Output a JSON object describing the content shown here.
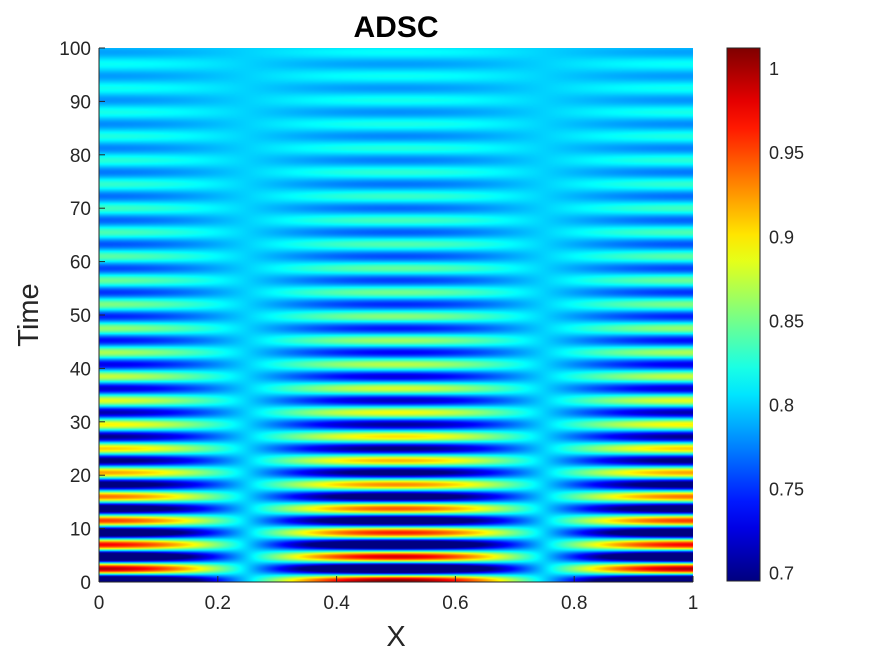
{
  "chart_data": {
    "type": "heatmap",
    "title": "ADSC",
    "xlabel": "X",
    "ylabel": "Time",
    "xlim": [
      0,
      1
    ],
    "ylim": [
      0,
      100
    ],
    "xticks": [
      "0",
      "0.2",
      "0.4",
      "0.6",
      "0.8",
      "1"
    ],
    "yticks": [
      "0",
      "10",
      "20",
      "30",
      "40",
      "50",
      "60",
      "70",
      "80",
      "90",
      "100"
    ],
    "colormap": "jet",
    "clim": [
      0.695,
      1.012
    ],
    "colorbar_ticks": [
      "0.7",
      "0.75",
      "0.8",
      "0.85",
      "0.9",
      "0.95",
      "1"
    ],
    "baseline_value": 0.8,
    "field": {
      "x_nodal_positions": [
        0,
        0.5,
        1
      ],
      "x_nodal_position_with_zero_amplitude": [
        0.25,
        0.75
      ],
      "time_of_first_peak": 2.5,
      "oscillation_period_time": 4.5,
      "amplitude_at_time_0": 0.21,
      "amplitude_at_time_100": 0.015
    },
    "bands": [
      {
        "time": 2.5,
        "edge_value": 1.01,
        "center_value": 0.7
      },
      {
        "time": 7,
        "edge_value": 0.72,
        "center_value": 0.97
      },
      {
        "time": 11.5,
        "edge_value": 0.96,
        "center_value": 0.71
      },
      {
        "time": 16,
        "edge_value": 0.73,
        "center_value": 0.93
      },
      {
        "time": 20.5,
        "edge_value": 0.91,
        "center_value": 0.72
      },
      {
        "time": 25,
        "edge_value": 0.75,
        "center_value": 0.88
      }
    ]
  }
}
